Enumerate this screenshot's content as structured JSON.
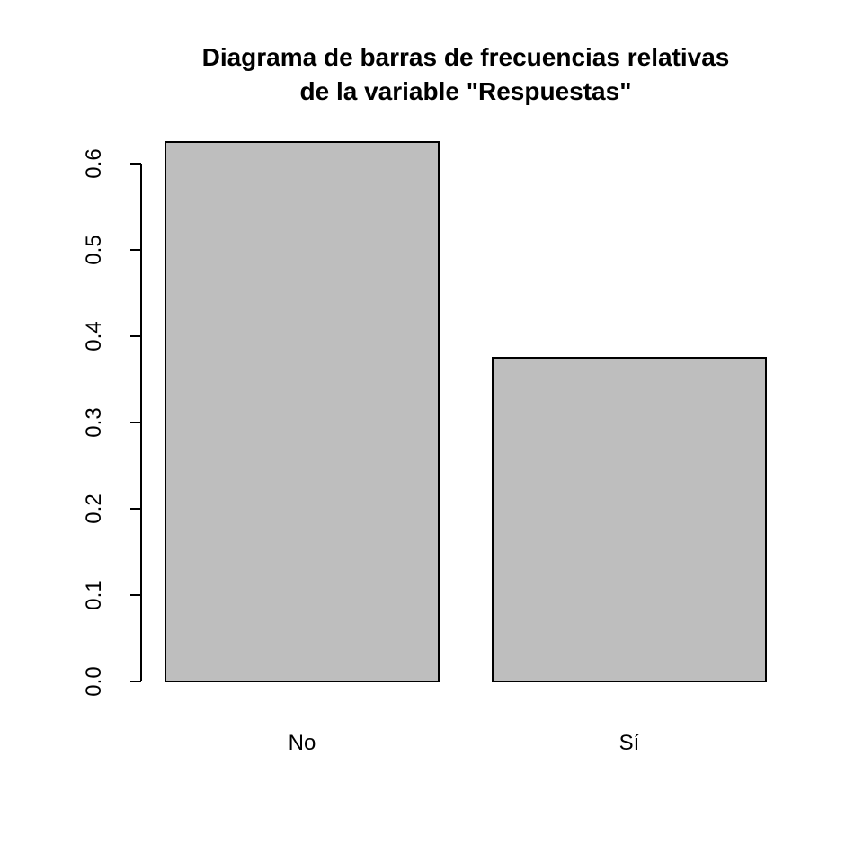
{
  "chart_data": {
    "type": "bar",
    "title": "Diagrama de barras de frecuencias relativas",
    "subtitle": "de la variable \"Respuestas\"",
    "xlabel": "",
    "ylabel": "",
    "categories": [
      "No",
      "Sí"
    ],
    "values": [
      0.625,
      0.375
    ],
    "ylim": [
      0,
      0.6
    ],
    "yticks": [
      "0.0",
      "0.1",
      "0.2",
      "0.3",
      "0.4",
      "0.5",
      "0.6"
    ],
    "grid": false,
    "colors": {
      "bar_fill": "#bebebe",
      "bar_stroke": "#000000",
      "axis": "#000000",
      "background": "#ffffff"
    }
  }
}
